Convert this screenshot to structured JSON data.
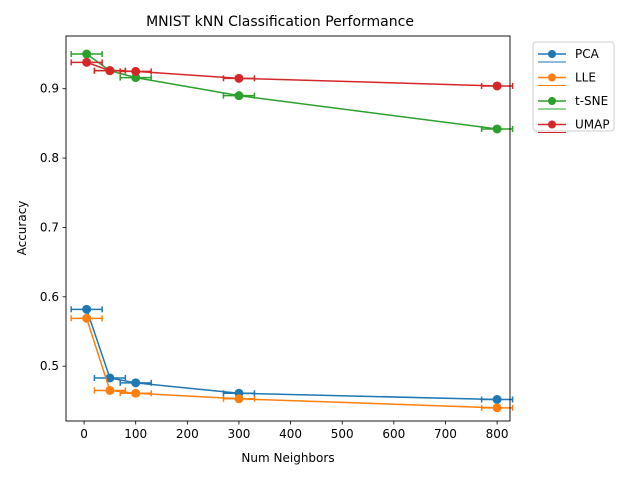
{
  "chart_data": {
    "type": "line",
    "title": "MNIST kNN Classification Performance",
    "xlabel": "Num Neighbors",
    "ylabel": "Accuracy",
    "xlim": [
      -35,
      825
    ],
    "ylim": [
      0.421,
      0.976
    ],
    "xticks": [
      0,
      100,
      200,
      300,
      400,
      500,
      600,
      700,
      800
    ],
    "yticks": [
      0.5,
      0.6,
      0.7,
      0.8,
      0.9
    ],
    "xtick_labels": [
      "0",
      "100",
      "200",
      "300",
      "400",
      "500",
      "600",
      "700",
      "800"
    ],
    "ytick_labels": [
      "0.5",
      "0.6",
      "0.7",
      "0.8",
      "0.9"
    ],
    "x": [
      5,
      50,
      100,
      300,
      800
    ],
    "grid": false,
    "legend_placement": "outside-upper-right",
    "error_bars": "horizontal",
    "series": [
      {
        "name": "PCA",
        "color": "#1f77b4",
        "values": [
          0.582,
          0.483,
          0.476,
          0.461,
          0.452
        ],
        "xerr": [
          30,
          30,
          30,
          30,
          30
        ]
      },
      {
        "name": "LLE",
        "color": "#ff7f0e",
        "values": [
          0.569,
          0.465,
          0.461,
          0.453,
          0.44
        ],
        "xerr": [
          30,
          30,
          30,
          30,
          30
        ]
      },
      {
        "name": "t-SNE",
        "color": "#2ca02c",
        "values": [
          0.95,
          0.926,
          0.916,
          0.89,
          0.842
        ],
        "xerr": [
          30,
          30,
          30,
          30,
          30
        ]
      },
      {
        "name": "UMAP",
        "color": "#d62728",
        "values": [
          0.938,
          0.926,
          0.925,
          0.915,
          0.904
        ],
        "xerr": [
          30,
          30,
          30,
          30,
          30
        ]
      }
    ]
  }
}
